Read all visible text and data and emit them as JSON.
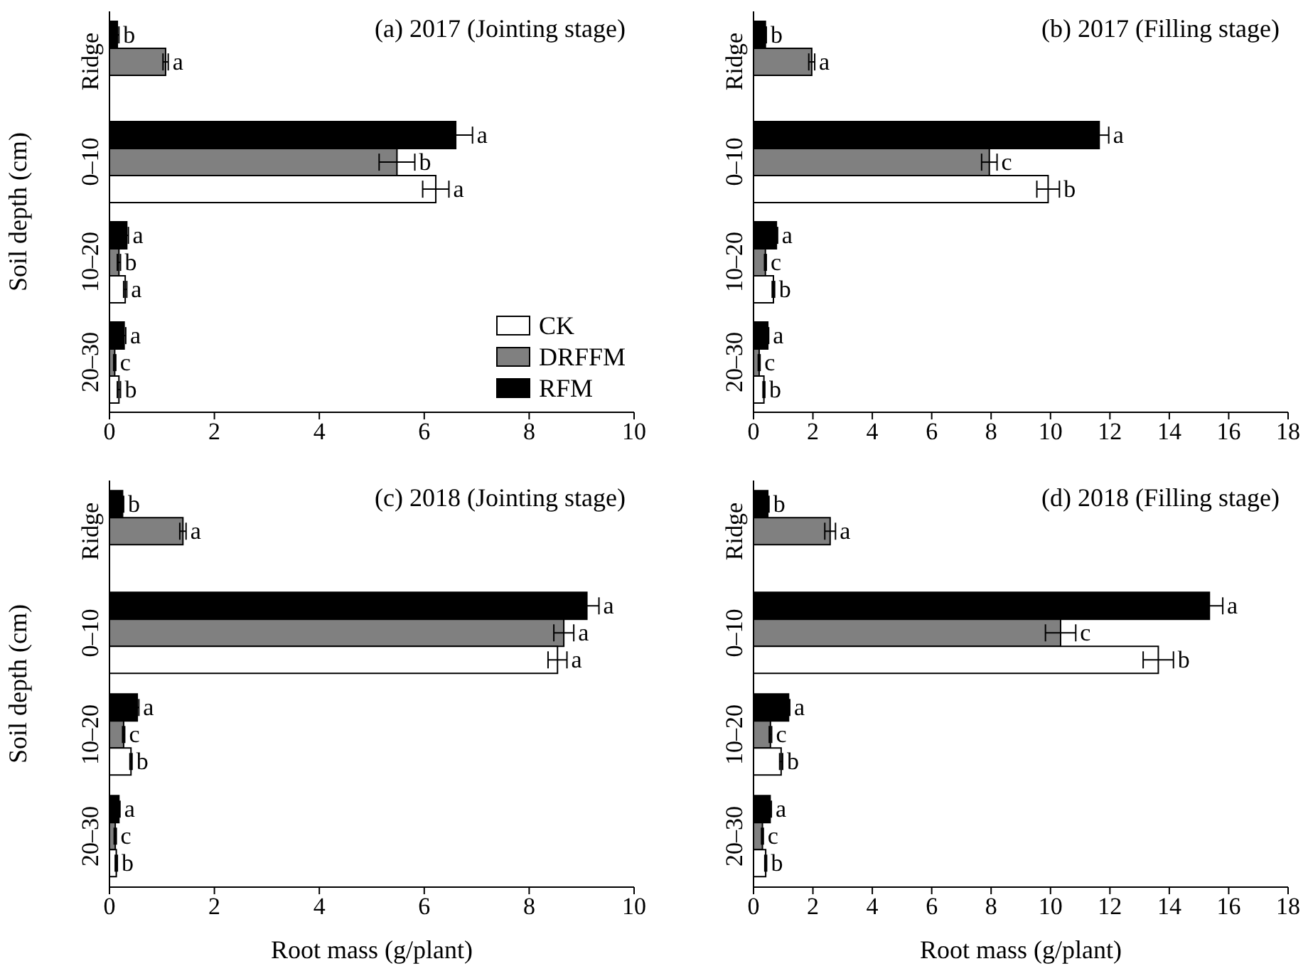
{
  "chart_data": [
    {
      "type": "bar",
      "orientation": "horizontal",
      "title": "(a) 2017 (Jointing stage)",
      "ylabel": "Soil depth (cm)",
      "categories": [
        "Ridge",
        "0–10",
        "10–20",
        "20–30"
      ],
      "xlim": [
        0,
        10
      ],
      "xticks": [
        0,
        2,
        4,
        6,
        8,
        10
      ],
      "legend": "bottom right",
      "grid": false,
      "series": [
        {
          "name": "RFM",
          "color": "#000000",
          "values": [
            0.15,
            6.6,
            0.33,
            0.28
          ],
          "errors": [
            0.03,
            0.32,
            0.03,
            0.03
          ],
          "value_labels": [
            "b",
            "a",
            "a",
            "a"
          ]
        },
        {
          "name": "DRFFM",
          "color": "#808080",
          "values": [
            1.07,
            5.48,
            0.18,
            0.1
          ],
          "errors": [
            0.05,
            0.34,
            0.03,
            0.02
          ],
          "value_labels": [
            "a",
            "b",
            "b",
            "c"
          ]
        },
        {
          "name": "CK",
          "color": "#ffffff",
          "values": [
            null,
            6.22,
            0.3,
            0.18
          ],
          "errors": [
            null,
            0.25,
            0.03,
            0.03
          ],
          "value_labels": [
            null,
            "a",
            "a",
            "b"
          ]
        }
      ]
    },
    {
      "type": "bar",
      "orientation": "horizontal",
      "title": "(b) 2017 (Filling stage)",
      "categories": [
        "Ridge",
        "0–10",
        "10–20",
        "20–30"
      ],
      "xlim": [
        0,
        18
      ],
      "xticks": [
        0,
        2,
        4,
        6,
        8,
        10,
        12,
        14,
        16,
        18
      ],
      "legend": false,
      "grid": false,
      "series": [
        {
          "color": "#000000",
          "values": [
            0.4,
            11.64,
            0.77,
            0.48
          ],
          "errors": [
            0.03,
            0.32,
            0.04,
            0.03
          ],
          "value_labels": [
            "b",
            "a",
            "a",
            "a"
          ]
        },
        {
          "color": "#808080",
          "values": [
            1.96,
            7.94,
            0.4,
            0.19
          ],
          "errors": [
            0.1,
            0.26,
            0.03,
            0.03
          ],
          "value_labels": [
            "a",
            "c",
            "c",
            "c"
          ]
        },
        {
          "color": "#ffffff",
          "values": [
            null,
            9.92,
            0.67,
            0.35
          ],
          "errors": [
            null,
            0.38,
            0.04,
            0.03
          ],
          "value_labels": [
            null,
            "b",
            "b",
            "b"
          ]
        }
      ]
    },
    {
      "type": "bar",
      "orientation": "horizontal",
      "title": "(c) 2018 (Jointing stage)",
      "xlabel": "Root mass (g/plant)",
      "ylabel": "Soil depth (cm)",
      "categories": [
        "Ridge",
        "0–10",
        "10–20",
        "20–30"
      ],
      "xlim": [
        0,
        10
      ],
      "xticks": [
        0,
        2,
        4,
        6,
        8,
        10
      ],
      "legend": false,
      "grid": false,
      "series": [
        {
          "color": "#000000",
          "values": [
            0.25,
            9.1,
            0.53,
            0.18
          ],
          "errors": [
            0.02,
            0.23,
            0.03,
            0.02
          ],
          "value_labels": [
            "b",
            "a",
            "a",
            "a"
          ]
        },
        {
          "color": "#808080",
          "values": [
            1.4,
            8.66,
            0.27,
            0.11
          ],
          "errors": [
            0.06,
            0.19,
            0.02,
            0.02
          ],
          "value_labels": [
            "a",
            "a",
            "c",
            "c"
          ]
        },
        {
          "color": "#ffffff",
          "values": [
            null,
            8.54,
            0.41,
            0.13
          ],
          "errors": [
            null,
            0.18,
            0.02,
            0.02
          ],
          "value_labels": [
            null,
            "a",
            "b",
            "b"
          ]
        }
      ]
    },
    {
      "type": "bar",
      "orientation": "horizontal",
      "title": "(d) 2018 (Filling stage)",
      "xlabel": "Root mass (g/plant)",
      "categories": [
        "Ridge",
        "0–10",
        "10–20",
        "20–30"
      ],
      "xlim": [
        0,
        18
      ],
      "xticks": [
        0,
        2,
        4,
        6,
        8,
        10,
        12,
        14,
        16,
        18
      ],
      "legend": false,
      "grid": false,
      "series": [
        {
          "color": "#000000",
          "values": [
            0.48,
            15.35,
            1.18,
            0.56
          ],
          "errors": [
            0.04,
            0.45,
            0.04,
            0.04
          ],
          "value_labels": [
            "b",
            "a",
            "a",
            "a"
          ]
        },
        {
          "color": "#808080",
          "values": [
            2.58,
            10.34,
            0.57,
            0.3
          ],
          "errors": [
            0.18,
            0.51,
            0.04,
            0.03
          ],
          "value_labels": [
            "a",
            "c",
            "c",
            "c"
          ]
        },
        {
          "color": "#ffffff",
          "values": [
            null,
            13.63,
            0.93,
            0.41
          ],
          "errors": [
            null,
            0.51,
            0.05,
            0.03
          ],
          "value_labels": [
            null,
            "b",
            "b",
            "b"
          ]
        }
      ]
    }
  ]
}
